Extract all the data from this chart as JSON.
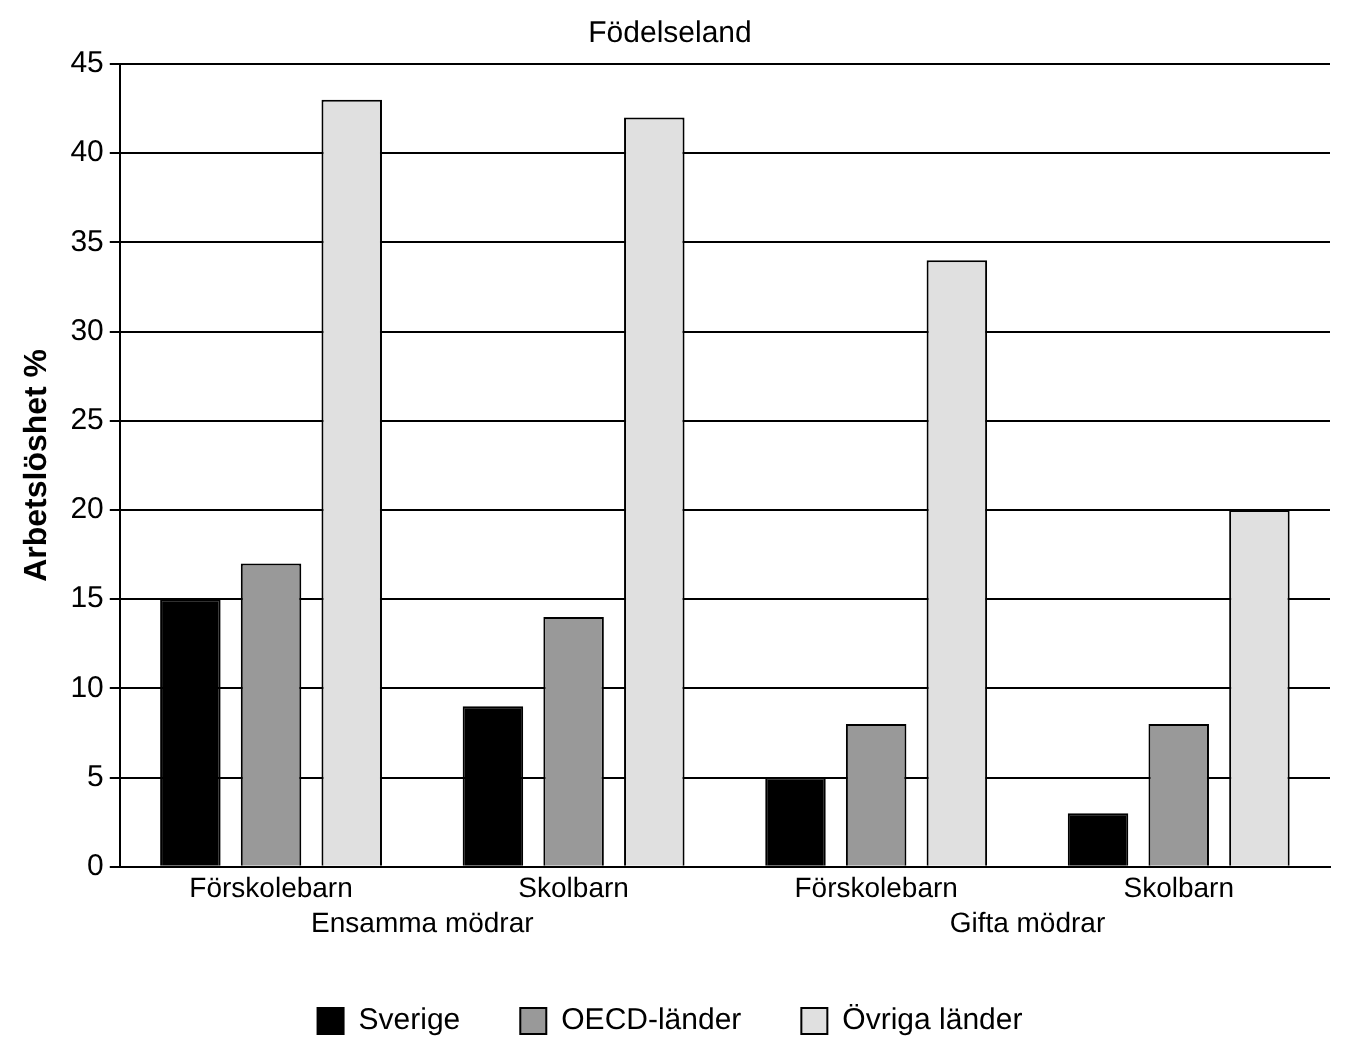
{
  "chart_data": {
    "type": "bar",
    "title": "Födelseland",
    "ylabel": "Arbetslöshet %",
    "categories": [
      "Förskolebarn",
      "Skolbarn",
      "Förskolebarn",
      "Skolbarn"
    ],
    "annotations": [
      "Ensamma mödrar",
      "Gifta mödrar"
    ],
    "series": [
      {
        "name": "Sverige",
        "color": "#000000",
        "values": [
          15,
          9,
          5,
          3
        ]
      },
      {
        "name": "OECD-länder",
        "color": "#999999",
        "values": [
          17,
          14,
          8,
          8
        ]
      },
      {
        "name": "Övriga länder",
        "color": "#e0e0e0",
        "values": [
          43,
          42,
          34,
          20
        ]
      }
    ],
    "ylim": [
      0,
      45
    ],
    "yticks": [
      0,
      5,
      10,
      15,
      20,
      25,
      30,
      35,
      40,
      45
    ],
    "grid": "y",
    "legend": "bottom"
  }
}
